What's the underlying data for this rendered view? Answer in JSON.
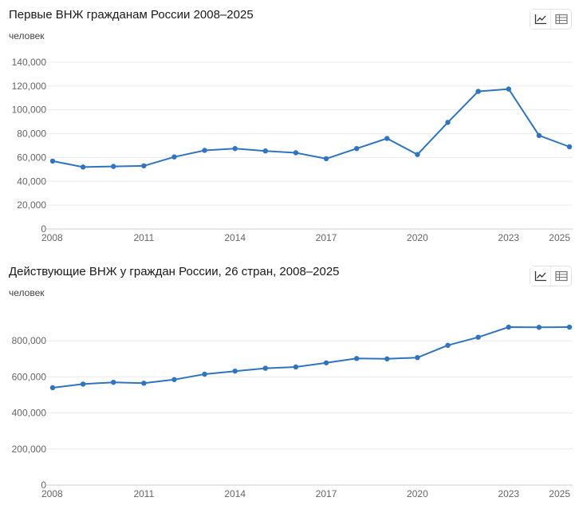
{
  "icons": {
    "line_view": "line-chart-icon",
    "table_view": "table-icon"
  },
  "colors": {
    "series": "#2f74c0",
    "grid": "#ececec",
    "axis": "#cfcfcf",
    "tick": "#666666"
  },
  "chart_data": [
    {
      "type": "line",
      "title": "Первые ВНЖ гражданам России 2008–2025",
      "ylabel": "человек",
      "xlabel": "",
      "x": [
        2008,
        2009,
        2010,
        2011,
        2012,
        2013,
        2014,
        2015,
        2016,
        2017,
        2018,
        2019,
        2020,
        2021,
        2022,
        2023,
        2024,
        2025
      ],
      "values": [
        57000,
        52000,
        52500,
        53000,
        60500,
        66000,
        67500,
        65500,
        64000,
        59000,
        67500,
        76000,
        62500,
        89500,
        115500,
        117500,
        78500,
        69000
      ],
      "ylim": [
        0,
        140000
      ],
      "yticks": [
        0,
        20000,
        40000,
        60000,
        80000,
        100000,
        120000,
        140000
      ],
      "ytick_labels": [
        "0",
        "20,000",
        "40,000",
        "60,000",
        "80,000",
        "100,000",
        "120,000",
        "140,000"
      ],
      "xticks": [
        2008,
        2011,
        2014,
        2017,
        2020,
        2023,
        2025
      ],
      "xtick_labels": [
        "2008",
        "2011",
        "2014",
        "2017",
        "2020",
        "2023",
        "2025"
      ],
      "grid": true,
      "legend": "none"
    },
    {
      "type": "line",
      "title": "Действующие ВНЖ у граждан России, 26 стран, 2008–2025",
      "ylabel": "человек",
      "xlabel": "",
      "x": [
        2008,
        2009,
        2010,
        2011,
        2012,
        2013,
        2014,
        2015,
        2016,
        2017,
        2018,
        2019,
        2020,
        2021,
        2022,
        2023,
        2024,
        2025
      ],
      "values": [
        540000,
        560000,
        570000,
        565000,
        585000,
        615000,
        632000,
        648000,
        655000,
        678000,
        702000,
        700000,
        707000,
        775000,
        820000,
        876000,
        875000,
        876000
      ],
      "ylim": [
        0,
        1000000
      ],
      "yticks": [
        0,
        200000,
        400000,
        600000,
        800000
      ],
      "ytick_labels": [
        "0",
        "200,000",
        "400,000",
        "600,000",
        "800,000"
      ],
      "xticks": [
        2008,
        2011,
        2014,
        2017,
        2020,
        2023,
        2025
      ],
      "xtick_labels": [
        "2008",
        "2011",
        "2014",
        "2017",
        "2020",
        "2023",
        "2025"
      ],
      "grid": true,
      "legend": "none"
    }
  ]
}
